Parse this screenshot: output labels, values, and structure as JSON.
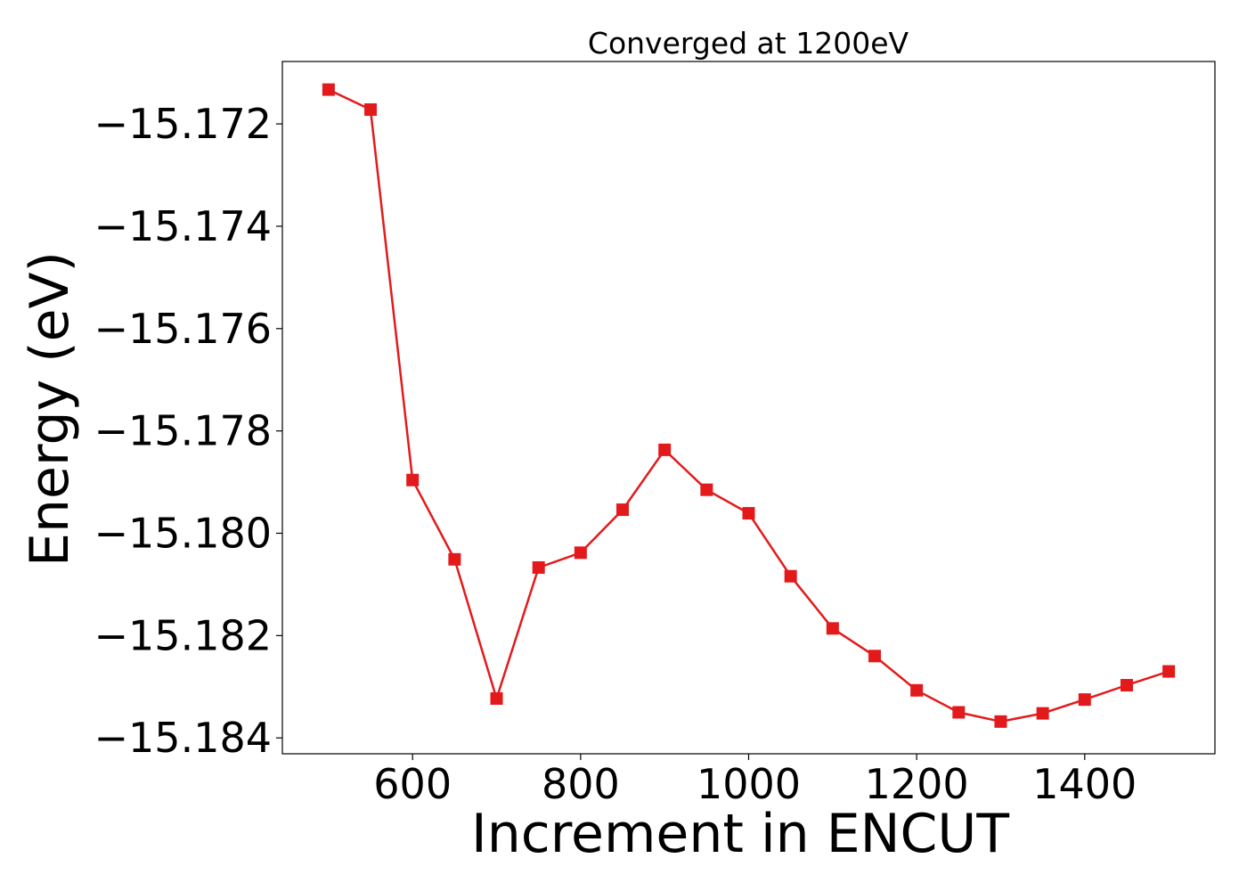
{
  "chart_data": {
    "type": "line",
    "title": "Converged at 1200eV",
    "xlabel": "Increment in ENCUT",
    "ylabel": "Energy (eV)",
    "xlim": [
      445,
      1555
    ],
    "ylim": [
      -15.18431,
      -15.17078
    ],
    "xticks": [
      600,
      800,
      1000,
      1200,
      1400
    ],
    "xtick_labels": [
      "600",
      "800",
      "1000",
      "1200",
      "1400"
    ],
    "yticks": [
      -15.172,
      -15.174,
      -15.176,
      -15.178,
      -15.18,
      -15.182,
      -15.184
    ],
    "ytick_labels": [
      "−15.172",
      "−15.174",
      "−15.176",
      "−15.178",
      "−15.180",
      "−15.182",
      "−15.184"
    ],
    "grid": false,
    "legend": "none",
    "series": [
      {
        "color": "#e31a1c",
        "marker": "square",
        "x": [
          500,
          550,
          600,
          650,
          700,
          750,
          800,
          850,
          900,
          950,
          1000,
          1050,
          1100,
          1150,
          1200,
          1250,
          1300,
          1350,
          1400,
          1450,
          1500
        ],
        "y": [
          -15.17133,
          -15.17172,
          -15.17896,
          -15.18051,
          -15.18323,
          -15.18067,
          -15.18038,
          -15.17954,
          -15.17837,
          -15.17915,
          -15.17961,
          -15.18084,
          -15.18186,
          -15.1824,
          -15.18307,
          -15.1835,
          -15.18368,
          -15.18352,
          -15.18325,
          -15.18297,
          -15.1827
        ]
      }
    ]
  }
}
